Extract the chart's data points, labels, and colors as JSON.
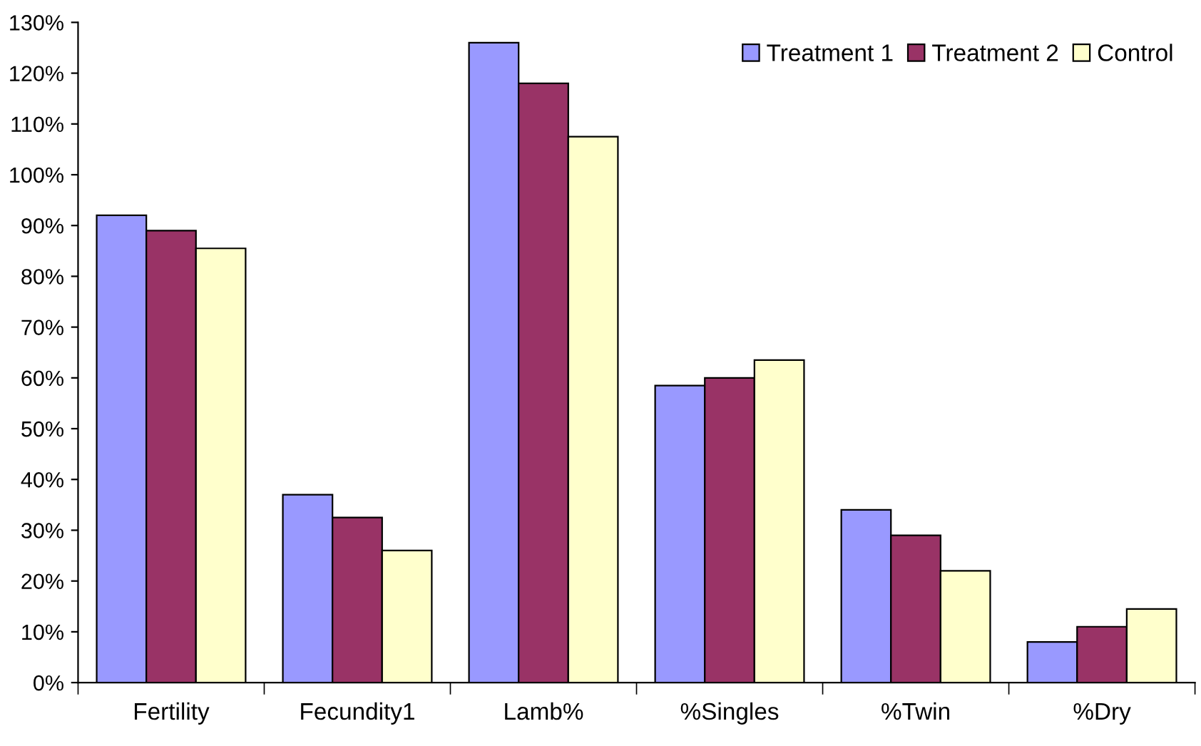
{
  "chart_data": {
    "type": "bar",
    "categories": [
      "Fertility",
      "Fecundity1",
      "Lamb%",
      "%Singles",
      "%Twin",
      "%Dry"
    ],
    "series": [
      {
        "name": "Treatment 1",
        "color": "#9999ff",
        "values": [
          92,
          37,
          126,
          58.5,
          34,
          8
        ]
      },
      {
        "name": "Treatment 2",
        "color": "#993366",
        "values": [
          89,
          32.5,
          118,
          60,
          29,
          11
        ]
      },
      {
        "name": "Control",
        "color": "#ffffcc",
        "values": [
          85.5,
          26,
          107.5,
          63.5,
          22,
          14.5
        ]
      }
    ],
    "ylim": [
      0,
      130
    ],
    "yticks": [
      {
        "value": 0,
        "label": "0%"
      },
      {
        "value": 10,
        "label": "10%"
      },
      {
        "value": 20,
        "label": "20%"
      },
      {
        "value": 30,
        "label": "30%"
      },
      {
        "value": 40,
        "label": "40%"
      },
      {
        "value": 50,
        "label": "50%"
      },
      {
        "value": 60,
        "label": "60%"
      },
      {
        "value": 70,
        "label": "70%"
      },
      {
        "value": 80,
        "label": "80%"
      },
      {
        "value": 90,
        "label": "90%"
      },
      {
        "value": 100,
        "label": "100%"
      },
      {
        "value": 110,
        "label": "110%"
      },
      {
        "value": 120,
        "label": "120%"
      },
      {
        "value": 130,
        "label": "130%"
      }
    ],
    "legend": "top right",
    "grid": false
  }
}
